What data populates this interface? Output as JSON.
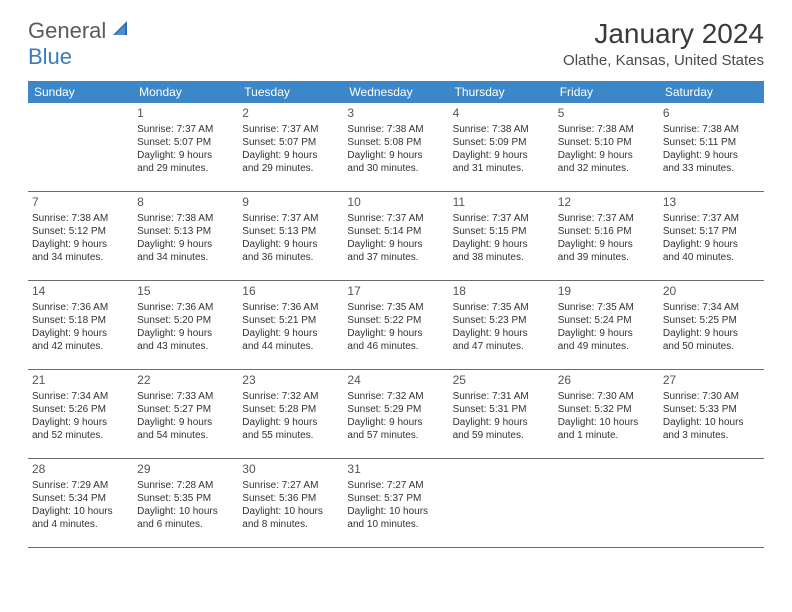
{
  "logo": {
    "text1": "General",
    "text2": "Blue"
  },
  "title": "January 2024",
  "location": "Olathe, Kansas, United States",
  "colors": {
    "header_bg": "#3b87c8",
    "header_text": "#ffffff",
    "logo_gray": "#5a5a5a",
    "logo_blue": "#3b7bbf",
    "border": "#6b6b6b"
  },
  "day_headers": [
    "Sunday",
    "Monday",
    "Tuesday",
    "Wednesday",
    "Thursday",
    "Friday",
    "Saturday"
  ],
  "weeks": [
    [
      null,
      {
        "n": "1",
        "sr": "Sunrise: 7:37 AM",
        "ss": "Sunset: 5:07 PM",
        "dl1": "Daylight: 9 hours",
        "dl2": "and 29 minutes."
      },
      {
        "n": "2",
        "sr": "Sunrise: 7:37 AM",
        "ss": "Sunset: 5:07 PM",
        "dl1": "Daylight: 9 hours",
        "dl2": "and 29 minutes."
      },
      {
        "n": "3",
        "sr": "Sunrise: 7:38 AM",
        "ss": "Sunset: 5:08 PM",
        "dl1": "Daylight: 9 hours",
        "dl2": "and 30 minutes."
      },
      {
        "n": "4",
        "sr": "Sunrise: 7:38 AM",
        "ss": "Sunset: 5:09 PM",
        "dl1": "Daylight: 9 hours",
        "dl2": "and 31 minutes."
      },
      {
        "n": "5",
        "sr": "Sunrise: 7:38 AM",
        "ss": "Sunset: 5:10 PM",
        "dl1": "Daylight: 9 hours",
        "dl2": "and 32 minutes."
      },
      {
        "n": "6",
        "sr": "Sunrise: 7:38 AM",
        "ss": "Sunset: 5:11 PM",
        "dl1": "Daylight: 9 hours",
        "dl2": "and 33 minutes."
      }
    ],
    [
      {
        "n": "7",
        "sr": "Sunrise: 7:38 AM",
        "ss": "Sunset: 5:12 PM",
        "dl1": "Daylight: 9 hours",
        "dl2": "and 34 minutes."
      },
      {
        "n": "8",
        "sr": "Sunrise: 7:38 AM",
        "ss": "Sunset: 5:13 PM",
        "dl1": "Daylight: 9 hours",
        "dl2": "and 34 minutes."
      },
      {
        "n": "9",
        "sr": "Sunrise: 7:37 AM",
        "ss": "Sunset: 5:13 PM",
        "dl1": "Daylight: 9 hours",
        "dl2": "and 36 minutes."
      },
      {
        "n": "10",
        "sr": "Sunrise: 7:37 AM",
        "ss": "Sunset: 5:14 PM",
        "dl1": "Daylight: 9 hours",
        "dl2": "and 37 minutes."
      },
      {
        "n": "11",
        "sr": "Sunrise: 7:37 AM",
        "ss": "Sunset: 5:15 PM",
        "dl1": "Daylight: 9 hours",
        "dl2": "and 38 minutes."
      },
      {
        "n": "12",
        "sr": "Sunrise: 7:37 AM",
        "ss": "Sunset: 5:16 PM",
        "dl1": "Daylight: 9 hours",
        "dl2": "and 39 minutes."
      },
      {
        "n": "13",
        "sr": "Sunrise: 7:37 AM",
        "ss": "Sunset: 5:17 PM",
        "dl1": "Daylight: 9 hours",
        "dl2": "and 40 minutes."
      }
    ],
    [
      {
        "n": "14",
        "sr": "Sunrise: 7:36 AM",
        "ss": "Sunset: 5:18 PM",
        "dl1": "Daylight: 9 hours",
        "dl2": "and 42 minutes."
      },
      {
        "n": "15",
        "sr": "Sunrise: 7:36 AM",
        "ss": "Sunset: 5:20 PM",
        "dl1": "Daylight: 9 hours",
        "dl2": "and 43 minutes."
      },
      {
        "n": "16",
        "sr": "Sunrise: 7:36 AM",
        "ss": "Sunset: 5:21 PM",
        "dl1": "Daylight: 9 hours",
        "dl2": "and 44 minutes."
      },
      {
        "n": "17",
        "sr": "Sunrise: 7:35 AM",
        "ss": "Sunset: 5:22 PM",
        "dl1": "Daylight: 9 hours",
        "dl2": "and 46 minutes."
      },
      {
        "n": "18",
        "sr": "Sunrise: 7:35 AM",
        "ss": "Sunset: 5:23 PM",
        "dl1": "Daylight: 9 hours",
        "dl2": "and 47 minutes."
      },
      {
        "n": "19",
        "sr": "Sunrise: 7:35 AM",
        "ss": "Sunset: 5:24 PM",
        "dl1": "Daylight: 9 hours",
        "dl2": "and 49 minutes."
      },
      {
        "n": "20",
        "sr": "Sunrise: 7:34 AM",
        "ss": "Sunset: 5:25 PM",
        "dl1": "Daylight: 9 hours",
        "dl2": "and 50 minutes."
      }
    ],
    [
      {
        "n": "21",
        "sr": "Sunrise: 7:34 AM",
        "ss": "Sunset: 5:26 PM",
        "dl1": "Daylight: 9 hours",
        "dl2": "and 52 minutes."
      },
      {
        "n": "22",
        "sr": "Sunrise: 7:33 AM",
        "ss": "Sunset: 5:27 PM",
        "dl1": "Daylight: 9 hours",
        "dl2": "and 54 minutes."
      },
      {
        "n": "23",
        "sr": "Sunrise: 7:32 AM",
        "ss": "Sunset: 5:28 PM",
        "dl1": "Daylight: 9 hours",
        "dl2": "and 55 minutes."
      },
      {
        "n": "24",
        "sr": "Sunrise: 7:32 AM",
        "ss": "Sunset: 5:29 PM",
        "dl1": "Daylight: 9 hours",
        "dl2": "and 57 minutes."
      },
      {
        "n": "25",
        "sr": "Sunrise: 7:31 AM",
        "ss": "Sunset: 5:31 PM",
        "dl1": "Daylight: 9 hours",
        "dl2": "and 59 minutes."
      },
      {
        "n": "26",
        "sr": "Sunrise: 7:30 AM",
        "ss": "Sunset: 5:32 PM",
        "dl1": "Daylight: 10 hours",
        "dl2": "and 1 minute."
      },
      {
        "n": "27",
        "sr": "Sunrise: 7:30 AM",
        "ss": "Sunset: 5:33 PM",
        "dl1": "Daylight: 10 hours",
        "dl2": "and 3 minutes."
      }
    ],
    [
      {
        "n": "28",
        "sr": "Sunrise: 7:29 AM",
        "ss": "Sunset: 5:34 PM",
        "dl1": "Daylight: 10 hours",
        "dl2": "and 4 minutes."
      },
      {
        "n": "29",
        "sr": "Sunrise: 7:28 AM",
        "ss": "Sunset: 5:35 PM",
        "dl1": "Daylight: 10 hours",
        "dl2": "and 6 minutes."
      },
      {
        "n": "30",
        "sr": "Sunrise: 7:27 AM",
        "ss": "Sunset: 5:36 PM",
        "dl1": "Daylight: 10 hours",
        "dl2": "and 8 minutes."
      },
      {
        "n": "31",
        "sr": "Sunrise: 7:27 AM",
        "ss": "Sunset: 5:37 PM",
        "dl1": "Daylight: 10 hours",
        "dl2": "and 10 minutes."
      },
      null,
      null,
      null
    ]
  ]
}
